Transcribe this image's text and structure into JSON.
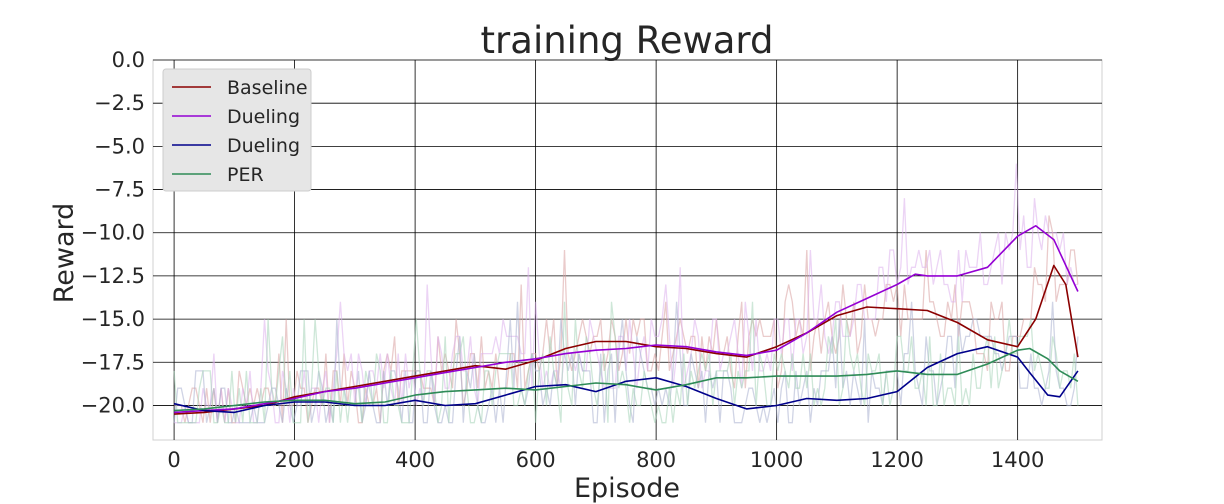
{
  "chart_data": {
    "type": "line",
    "title": "training Reward",
    "xlabel": "Episode",
    "ylabel": "Reward",
    "xlim": [
      -35,
      1540
    ],
    "ylim": [
      -22,
      0
    ],
    "xticks": [
      0,
      200,
      400,
      600,
      800,
      1000,
      1200,
      1400
    ],
    "yticks": [
      0.0,
      -2.5,
      -5.0,
      -7.5,
      -10.0,
      -12.5,
      -15.0,
      -17.5,
      -20.0
    ],
    "ytick_labels": [
      "0.0",
      "−2.5",
      "−5.0",
      "−7.5",
      "−10.0",
      "−12.5",
      "−15.0",
      "−17.5",
      "−20.0"
    ],
    "grid": true,
    "legend_position": "top-left",
    "series": [
      {
        "name": "Baseline",
        "color": "#8b0000",
        "raw_color": "#d9a0a0",
        "x": [
          0,
          50,
          100,
          150,
          200,
          250,
          300,
          350,
          400,
          450,
          500,
          550,
          600,
          650,
          700,
          750,
          800,
          850,
          900,
          950,
          1000,
          1050,
          1100,
          1150,
          1200,
          1250,
          1300,
          1350,
          1400,
          1430,
          1460,
          1480,
          1500
        ],
        "y": [
          -20.5,
          -20.4,
          -20.2,
          -20.0,
          -19.5,
          -19.2,
          -18.9,
          -18.6,
          -18.3,
          -18.0,
          -17.7,
          -17.9,
          -17.4,
          -16.7,
          -16.3,
          -16.3,
          -16.6,
          -16.7,
          -17.0,
          -17.2,
          -16.6,
          -15.8,
          -14.8,
          -14.3,
          -14.4,
          -14.5,
          -15.2,
          -16.2,
          -16.6,
          -15.0,
          -11.9,
          -13.0,
          -17.2
        ]
      },
      {
        "name": "Dueling",
        "color": "#9400d3",
        "raw_color": "#dcb0ec",
        "x": [
          0,
          50,
          100,
          150,
          200,
          250,
          300,
          350,
          400,
          450,
          500,
          550,
          600,
          650,
          700,
          750,
          800,
          850,
          900,
          950,
          1000,
          1050,
          1100,
          1150,
          1200,
          1230,
          1250,
          1300,
          1350,
          1400,
          1430,
          1460,
          1500
        ],
        "y": [
          -20.4,
          -20.3,
          -20.2,
          -19.9,
          -19.6,
          -19.2,
          -19.0,
          -18.7,
          -18.4,
          -18.1,
          -17.8,
          -17.5,
          -17.3,
          -17.0,
          -16.8,
          -16.7,
          -16.5,
          -16.6,
          -16.9,
          -17.1,
          -16.8,
          -15.8,
          -14.6,
          -13.8,
          -13.0,
          -12.4,
          -12.5,
          -12.5,
          -12.0,
          -10.2,
          -9.6,
          -10.4,
          -13.4
        ]
      },
      {
        "name": "Dueling",
        "color": "#00008b",
        "raw_color": "#a9b1cf",
        "x": [
          0,
          50,
          100,
          150,
          200,
          250,
          300,
          350,
          400,
          450,
          500,
          550,
          600,
          650,
          700,
          750,
          800,
          850,
          900,
          950,
          1000,
          1050,
          1100,
          1150,
          1200,
          1250,
          1300,
          1350,
          1400,
          1420,
          1450,
          1470,
          1500
        ],
        "y": [
          -19.9,
          -20.3,
          -20.4,
          -20.0,
          -19.8,
          -19.8,
          -20.0,
          -20.0,
          -19.7,
          -20.0,
          -19.9,
          -19.4,
          -18.9,
          -18.8,
          -19.2,
          -18.6,
          -18.4,
          -18.9,
          -19.6,
          -20.2,
          -20.0,
          -19.6,
          -19.7,
          -19.6,
          -19.2,
          -17.8,
          -17.0,
          -16.6,
          -17.2,
          -18.1,
          -19.4,
          -19.5,
          -18.0
        ]
      },
      {
        "name": "PER",
        "color": "#2e8b57",
        "raw_color": "#a6d4b8",
        "x": [
          0,
          50,
          100,
          150,
          200,
          250,
          300,
          350,
          400,
          450,
          500,
          550,
          600,
          650,
          700,
          750,
          800,
          850,
          900,
          950,
          1000,
          1050,
          1100,
          1150,
          1200,
          1250,
          1300,
          1350,
          1400,
          1420,
          1450,
          1470,
          1500
        ],
        "y": [
          -20.3,
          -20.2,
          -20.0,
          -19.8,
          -19.7,
          -19.7,
          -19.9,
          -19.8,
          -19.4,
          -19.2,
          -19.1,
          -19.0,
          -19.1,
          -18.9,
          -18.7,
          -18.8,
          -19.1,
          -18.8,
          -18.4,
          -18.4,
          -18.3,
          -18.3,
          -18.3,
          -18.2,
          -18.0,
          -18.2,
          -18.2,
          -17.6,
          -16.8,
          -16.7,
          -17.3,
          -18.0,
          -18.6
        ]
      }
    ]
  }
}
